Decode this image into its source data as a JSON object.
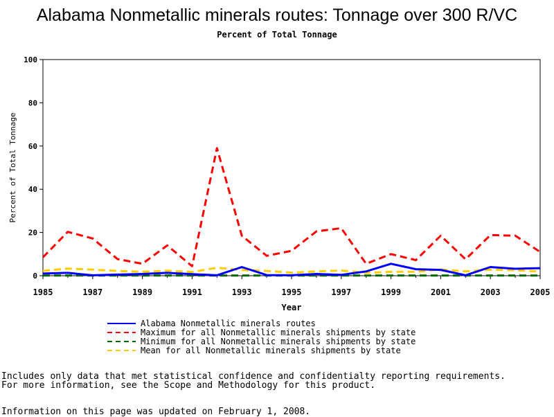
{
  "title": "Alabama Nonmetallic minerals routes: Tonnage over 300 R/VC",
  "subtitle": "Percent of Total Tonnage",
  "footnotes": {
    "line1": "Includes only data that met statistical confidence and confidentialty reporting requirements.",
    "line2": "For more information, see the Scope and Methodology for this product.",
    "line3": "Information on this page was updated on February 1, 2008."
  },
  "chart_data": {
    "type": "line",
    "title": "Alabama Nonmetallic minerals routes: Tonnage over 300 R/VC",
    "subtitle": "Percent of Total Tonnage",
    "xlabel": "Year",
    "ylabel": "Percent of Total Tonnage",
    "xlim": [
      1985,
      2005
    ],
    "ylim": [
      0,
      100
    ],
    "x_ticks": [
      "1985",
      "1987",
      "1989",
      "1991",
      "1993",
      "1995",
      "1997",
      "1999",
      "2001",
      "2003",
      "2005"
    ],
    "y_ticks": [
      "0",
      "20",
      "40",
      "60",
      "80",
      "100"
    ],
    "grid": false,
    "legend_position": "bottom",
    "x": [
      1985,
      1986,
      1987,
      1988,
      1989,
      1990,
      1991,
      1992,
      1993,
      1994,
      1995,
      1996,
      1997,
      1998,
      1999,
      2000,
      2001,
      2002,
      2003,
      2004,
      2005
    ],
    "series": [
      {
        "name": "Alabama Nonmetallic minerals routes",
        "color": "#0000ff",
        "dash": "solid",
        "values": [
          1,
          1.3,
          0.2,
          0.5,
          0.8,
          1.3,
          0.7,
          0.2,
          4.0,
          0.3,
          0.2,
          0.8,
          0.4,
          2.0,
          5.5,
          3.0,
          2.7,
          0.2,
          4.0,
          3.2,
          3.5
        ]
      },
      {
        "name": "Maximum for all Nonmetallic minerals shipments by state",
        "color": "#ff0000",
        "dash": "dashed",
        "values": [
          8.5,
          20.3,
          17.2,
          7.7,
          5.5,
          14.0,
          4.4,
          59.0,
          18.5,
          9.2,
          11.5,
          20.5,
          22.0,
          5.5,
          10.0,
          7.2,
          18.5,
          7.6,
          18.8,
          18.5,
          11.0
        ]
      },
      {
        "name": "Minimum for all Nonmetallic minerals shipments by state",
        "color": "#006400",
        "dash": "dashed",
        "values": [
          0.1,
          0.1,
          0.1,
          0.1,
          0.1,
          0.1,
          0.1,
          0.1,
          0.1,
          0.1,
          0.1,
          0.1,
          0.1,
          0.1,
          0.1,
          0.1,
          0.1,
          0.1,
          0.1,
          0.1,
          0.1
        ]
      },
      {
        "name": "Mean for all Nonmetallic minerals shipments by state",
        "color": "#ffcc00",
        "dash": "dashed",
        "values": [
          2.2,
          3.3,
          2.8,
          2.2,
          1.8,
          2.3,
          1.7,
          3.7,
          2.6,
          2.2,
          1.4,
          2.0,
          2.4,
          1.3,
          1.8,
          1.8,
          2.9,
          2.0,
          2.8,
          2.5,
          2.0
        ]
      }
    ]
  }
}
